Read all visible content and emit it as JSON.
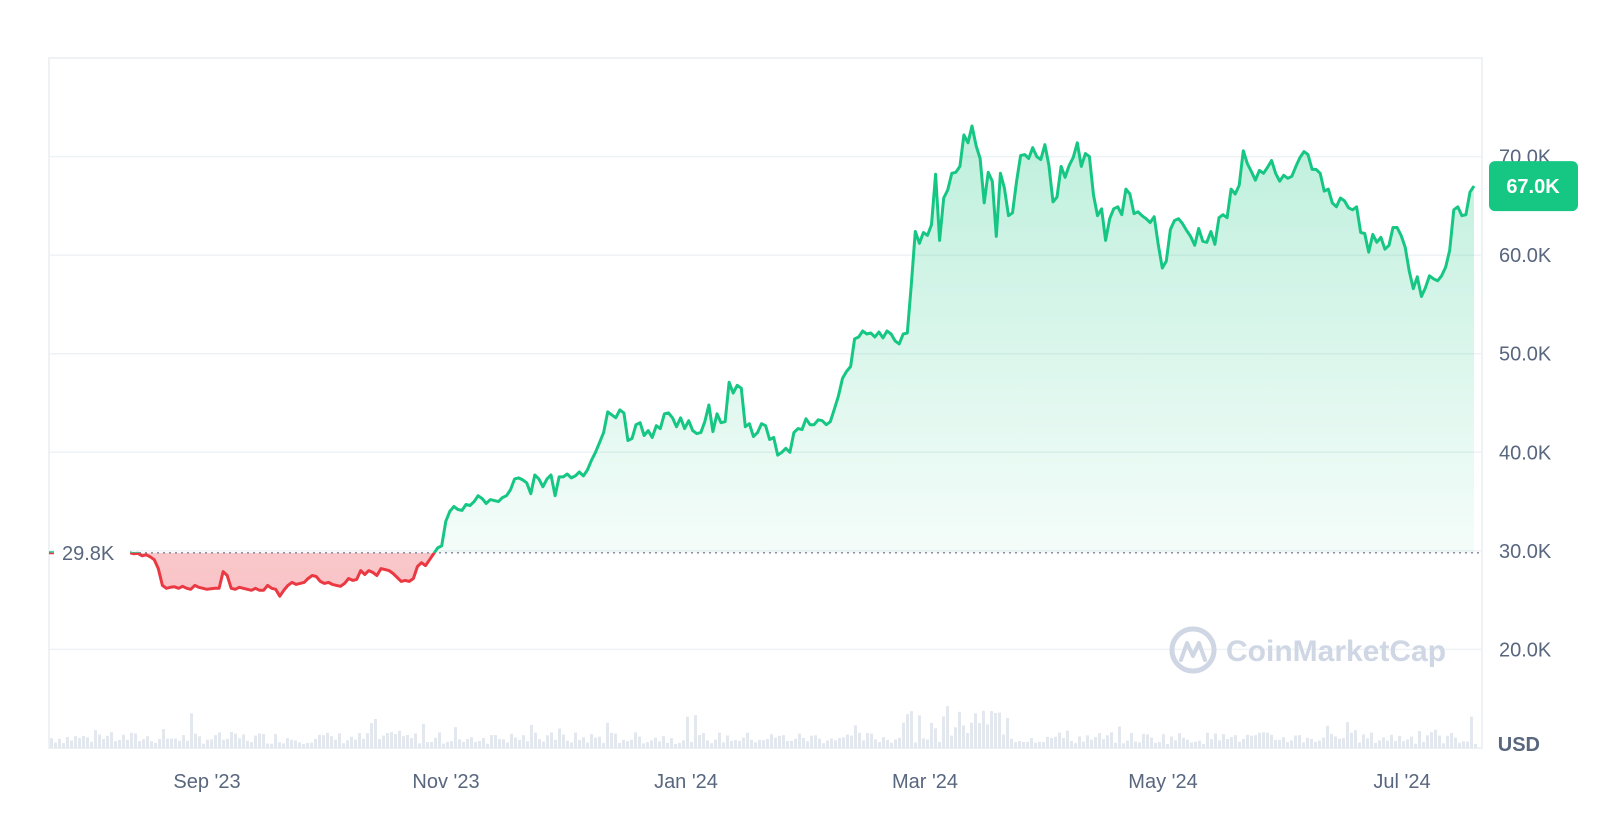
{
  "chart_data": {
    "type": "area",
    "x_ticks": [
      "Sep '23",
      "Nov '23",
      "Jan '24",
      "Mar '24",
      "May '24",
      "Jul '24"
    ],
    "y_ticks": [
      "20.0K",
      "30.0K",
      "40.0K",
      "50.0K",
      "60.0K",
      "70.0K"
    ],
    "y_tick_values": [
      20000,
      30000,
      40000,
      50000,
      60000,
      70000
    ],
    "ylim": [
      10000,
      80000
    ],
    "baseline_value": 29800,
    "baseline_label": "29.8K",
    "current_value": 67000,
    "current_label": "67.0K",
    "unit": "USD",
    "grid": true,
    "colors": {
      "up": "#16c784",
      "down": "#ea3943",
      "up_fill": "#16c784",
      "down_fill": "#ea3943"
    },
    "series": [
      {
        "values": [
          29800,
          29700,
          29750,
          29500,
          29600,
          29400,
          29100,
          28200,
          26500,
          26200,
          26300,
          26350,
          26200,
          26400,
          26200,
          26100,
          26500,
          26300,
          26200,
          26100,
          26150,
          26200,
          26200,
          27900,
          27500,
          26200,
          26100,
          26300,
          26200,
          26100,
          26000,
          26200,
          26000,
          26000,
          26500,
          26200,
          26100,
          25400,
          26000,
          26500,
          26800,
          26600,
          26700,
          26800,
          27200,
          27500,
          27400,
          26900,
          26700,
          26800,
          26600,
          26500,
          26400,
          26700,
          27200,
          27000,
          27100,
          28000,
          27600,
          28000,
          27800,
          27500,
          28200,
          28100,
          28000,
          27700,
          27300,
          26900,
          27000,
          26900,
          27200,
          28400,
          28800,
          28500,
          29100,
          29700,
          30300,
          30500,
          33000,
          34000,
          34500,
          34200,
          34100,
          34700,
          34600,
          35000,
          35600,
          35300,
          34800,
          35200,
          35100,
          35000,
          35400,
          35600,
          36200,
          37300,
          37400,
          37200,
          36900,
          35800,
          37700,
          37300,
          36500,
          37300,
          37700,
          35600,
          37500,
          37500,
          37800,
          37400,
          37600,
          38000,
          37600,
          38200,
          39200,
          40000,
          41000,
          42000,
          44100,
          43800,
          43500,
          44300,
          44000,
          41200,
          41400,
          42800,
          43000,
          41700,
          42200,
          41500,
          42700,
          42400,
          43900,
          44000,
          43500,
          42600,
          43500,
          42400,
          43200,
          42200,
          41900,
          42000,
          43100,
          44800,
          42100,
          43900,
          43000,
          43100,
          47100,
          46000,
          46800,
          46500,
          42600,
          42900,
          41600,
          42000,
          42900,
          42700,
          41300,
          41500,
          39700,
          40000,
          40400,
          40000,
          42000,
          42400,
          42300,
          43400,
          42800,
          42800,
          43300,
          43200,
          42800,
          43100,
          44400,
          45700,
          47500,
          48200,
          48700,
          51500,
          51700,
          52300,
          52000,
          52100,
          51700,
          52200,
          51600,
          52300,
          52000,
          51300,
          51000,
          52000,
          52100,
          57000,
          62400,
          61200,
          62300,
          62000,
          63100,
          68200,
          61500,
          65800,
          66600,
          68300,
          68400,
          69000,
          72200,
          71400,
          73100,
          71100,
          69800,
          65300,
          68400,
          67500,
          61900,
          68300,
          66800,
          64000,
          64300,
          67500,
          70100,
          70200,
          69800,
          70900,
          70000,
          69700,
          71200,
          69100,
          65400,
          65900,
          69000,
          67900,
          69100,
          69900,
          71400,
          69000,
          70300,
          70000,
          66100,
          64000,
          64700,
          61500,
          63700,
          64700,
          64900,
          64100,
          66700,
          66200,
          64200,
          64400,
          64000,
          63700,
          63300,
          63900,
          61100,
          58700,
          59400,
          62600,
          63500,
          63700,
          63200,
          62500,
          61900,
          61000,
          62700,
          61400,
          61300,
          62400,
          61100,
          63800,
          64100,
          63800,
          66700,
          66200,
          67100,
          70600,
          69300,
          68500,
          67600,
          68600,
          68300,
          68900,
          69600,
          68300,
          67500,
          68100,
          67800,
          68000,
          69000,
          69900,
          70500,
          70200,
          68700,
          68700,
          68300,
          66500,
          66700,
          65300,
          64900,
          65800,
          65500,
          64800,
          64600,
          64900,
          62300,
          62200,
          60300,
          62100,
          61300,
          61800,
          60600,
          61000,
          62800,
          62800,
          62000,
          60800,
          58400,
          56600,
          57800,
          55800,
          56700,
          57900,
          57600,
          57400,
          57900,
          58800,
          60500,
          64600,
          64900,
          64000,
          64100,
          66400,
          67000
        ]
      }
    ]
  }
}
